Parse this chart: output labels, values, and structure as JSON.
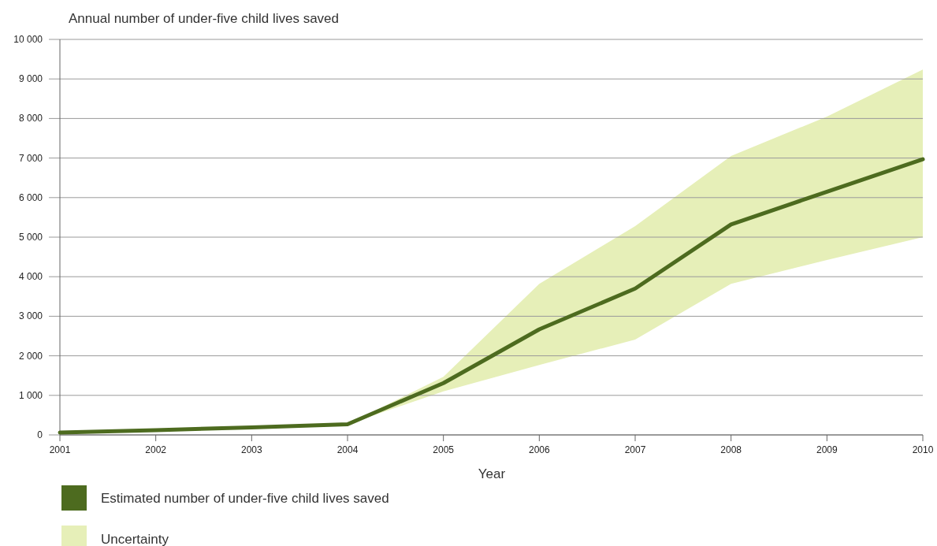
{
  "chart_data": {
    "type": "line",
    "title": "Annual number of under-five child lives saved",
    "xlabel": "Year",
    "x": [
      2001,
      2002,
      2003,
      2004,
      2005,
      2006,
      2007,
      2008,
      2009,
      2010
    ],
    "series": [
      {
        "name": "Estimated number of under-five child lives saved",
        "color": "#4d6b1f",
        "values": [
          60,
          120,
          190,
          270,
          1310,
          2670,
          3700,
          5320,
          6150,
          6970
        ],
        "lower": [
          60,
          120,
          190,
          270,
          1100,
          1770,
          2410,
          3820,
          4420,
          5000
        ],
        "upper": [
          60,
          120,
          190,
          270,
          1470,
          3820,
          5280,
          7050,
          8050,
          9240
        ]
      },
      {
        "name": "Uncertainty",
        "type": "area",
        "color": "#e6efb8",
        "values": [
          null,
          null,
          null,
          null,
          null,
          null,
          null,
          null,
          null,
          null
        ]
      }
    ],
    "xlim": [
      2001,
      2010
    ],
    "xticks": [
      2001,
      2002,
      2003,
      2004,
      2005,
      2006,
      2007,
      2008,
      2009,
      2010
    ],
    "ylim": [
      0,
      10000
    ],
    "yticks": [
      0,
      {
        "value": 1000,
        "label": "1 000"
      },
      {
        "value": 2000,
        "label": "2 000"
      },
      {
        "value": 3000,
        "label": "3 000"
      },
      {
        "value": 4000,
        "label": "4 000"
      },
      {
        "value": 5000,
        "label": "5 000"
      },
      {
        "value": 6000,
        "label": "6 000"
      },
      {
        "value": 7000,
        "label": "7 000"
      },
      {
        "value": 8000,
        "label": "8 000"
      },
      {
        "value": 9000,
        "label": "9 000"
      },
      {
        "value": 10000,
        "label": "10  000"
      }
    ],
    "grid": "y",
    "legend": "bottom",
    "line_style": "solid"
  }
}
